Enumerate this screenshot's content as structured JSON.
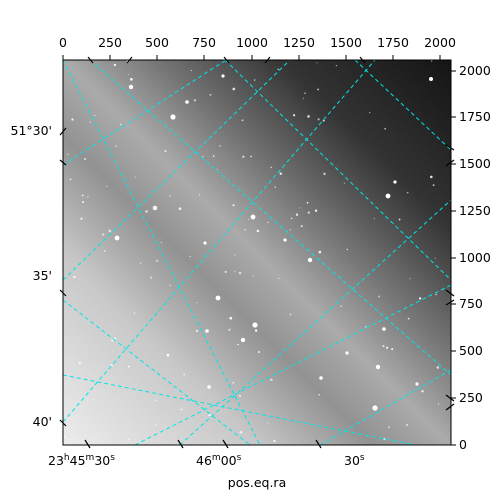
{
  "axes": {
    "xlabel": "pos.eq.ra",
    "top_ticks": [
      "0",
      "250",
      "500",
      "750",
      "1000",
      "1250",
      "1500",
      "1750",
      "2000"
    ],
    "right_ticks": [
      "0",
      "250",
      "500",
      "750",
      "1000",
      "1250",
      "1500",
      "1750",
      "2000"
    ],
    "left_ticks": [
      "51°30'",
      "35'",
      "40'"
    ],
    "bottom_ticks": [
      "23h45m30s",
      "46m00s",
      "30s"
    ]
  },
  "bottom_tick_parts": [
    {
      "a": "23",
      "as": "h",
      "b": "45",
      "bs": "m",
      "c": "30",
      "cs": "s"
    },
    {
      "b": "46",
      "bs": "m",
      "c": "00",
      "cs": "s"
    },
    {
      "c": "30",
      "cs": "s"
    }
  ],
  "style": {
    "grid_color": "#00e5e5",
    "frame_color": "#000000"
  },
  "image_description_colors": {
    "bright": "#e8e8e8",
    "dark": "#050505"
  }
}
